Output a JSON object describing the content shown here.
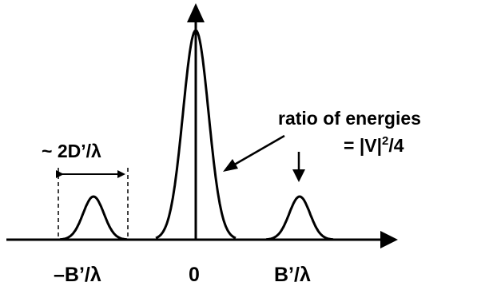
{
  "diagram": {
    "center_label": "0",
    "right_label": "B’/λ",
    "left_label": "–B’/λ",
    "width_label": "~ 2D’/λ",
    "ratio_label_line1": "ratio of energies",
    "ratio_label_line2": "= |V|",
    "ratio_exponent": "2",
    "ratio_suffix": "/4"
  },
  "colors": {
    "ink": "#000000",
    "background": "#ffffff"
  }
}
